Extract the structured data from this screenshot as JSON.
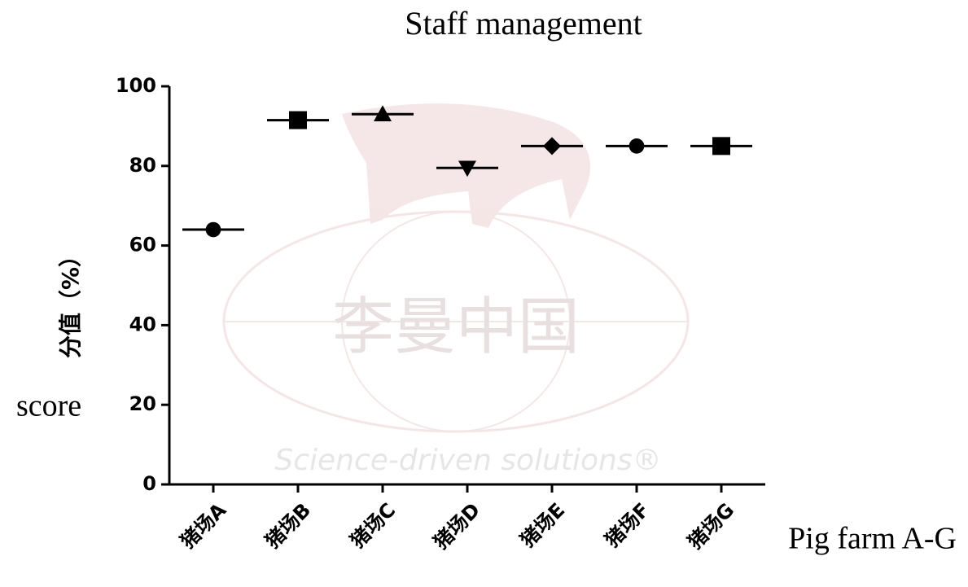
{
  "chart_data": {
    "type": "dot",
    "title": "Staff management",
    "y_label": "分值（%）",
    "y_label_en": "score",
    "x_label_en": "Pig farm A-G",
    "categories": [
      "猪场A",
      "猪场B",
      "猪场C",
      "猪场D",
      "猪场E",
      "猪场F",
      "猪场G"
    ],
    "values": [
      64,
      91.5,
      93,
      79.5,
      85,
      85,
      85
    ],
    "markers": [
      "circle",
      "square",
      "triangle-up",
      "triangle-down",
      "diamond",
      "circle",
      "square"
    ],
    "color": "#000000",
    "ylim": [
      0,
      100
    ],
    "yticks": [
      0,
      20,
      40,
      60,
      80,
      100
    ],
    "watermark": {
      "text": "李曼中国",
      "tagline": "Science-driven solutions®"
    }
  }
}
